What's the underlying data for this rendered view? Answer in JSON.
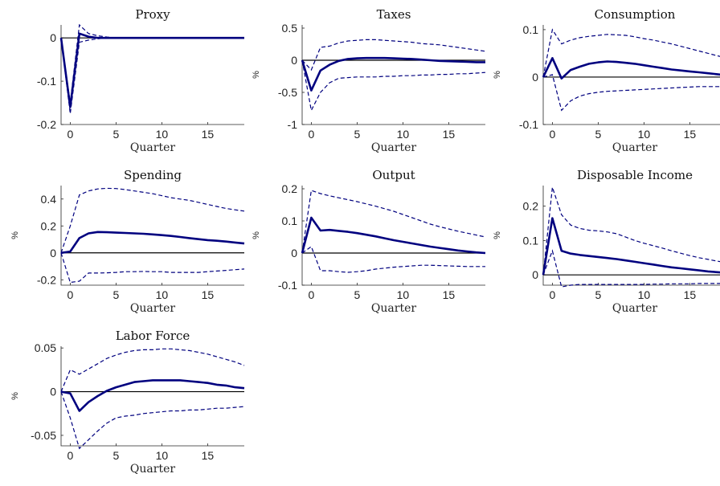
{
  "chart_data": [
    {
      "type": "line",
      "title": "Proxy",
      "xlabel": "Quarter",
      "ylabel": "",
      "xlim": [
        -1,
        19
      ],
      "ylim": [
        -0.2,
        0.03
      ],
      "xticks": [
        0,
        5,
        10,
        15
      ],
      "yticks": [
        -0.2,
        -0.1,
        0
      ],
      "ytick_labels": [
        "-0.2",
        "-0.1",
        "0"
      ],
      "x": [
        -1,
        0,
        1,
        2,
        3,
        4,
        5,
        6,
        7,
        8,
        9,
        10,
        11,
        12,
        13,
        14,
        15,
        16,
        17,
        18,
        19
      ],
      "series": [
        {
          "values": [
            0,
            -0.16,
            0.01,
            0.003,
            0,
            0,
            0,
            0,
            0,
            0,
            0,
            0,
            0,
            0,
            0,
            0,
            0,
            0,
            0,
            0,
            0
          ]
        },
        {
          "values": [
            0,
            -0.15,
            0.03,
            0.01,
            0.005,
            0.002,
            0,
            0,
            0,
            0,
            0,
            0,
            0,
            0,
            0,
            0,
            0,
            0,
            0,
            0,
            0
          ]
        },
        {
          "values": [
            0,
            -0.175,
            -0.01,
            -0.005,
            -0.002,
            0,
            0,
            0,
            0,
            0,
            0,
            0,
            0,
            0,
            0,
            0,
            0,
            0,
            0,
            0,
            0
          ]
        }
      ]
    },
    {
      "type": "line",
      "title": "Taxes",
      "xlabel": "Quarter",
      "ylabel": "%",
      "xlim": [
        -1,
        19
      ],
      "ylim": [
        -1,
        0.55
      ],
      "xticks": [
        0,
        5,
        10,
        15
      ],
      "yticks": [
        -1,
        -0.5,
        0,
        0.5
      ],
      "ytick_labels": [
        "-1",
        "-0.5",
        "0",
        "0.5"
      ],
      "x": [
        -1,
        0,
        1,
        2,
        3,
        4,
        5,
        6,
        7,
        8,
        9,
        10,
        11,
        12,
        13,
        14,
        15,
        16,
        17,
        18,
        19
      ],
      "series": [
        {
          "values": [
            0,
            -0.47,
            -0.16,
            -0.07,
            -0.01,
            0.02,
            0.03,
            0.035,
            0.035,
            0.035,
            0.03,
            0.025,
            0.02,
            0.01,
            0,
            -0.01,
            -0.015,
            -0.02,
            -0.025,
            -0.03,
            -0.03
          ]
        },
        {
          "values": [
            0,
            -0.15,
            0.2,
            0.22,
            0.27,
            0.3,
            0.31,
            0.32,
            0.32,
            0.31,
            0.3,
            0.29,
            0.28,
            0.26,
            0.25,
            0.24,
            0.22,
            0.2,
            0.18,
            0.16,
            0.14
          ]
        },
        {
          "values": [
            0,
            -0.78,
            -0.5,
            -0.35,
            -0.28,
            -0.27,
            -0.26,
            -0.26,
            -0.26,
            -0.25,
            -0.25,
            -0.24,
            -0.24,
            -0.23,
            -0.23,
            -0.22,
            -0.22,
            -0.21,
            -0.21,
            -0.2,
            -0.19
          ]
        }
      ]
    },
    {
      "type": "line",
      "title": "Consumption",
      "xlabel": "Quarter",
      "ylabel": "%",
      "xlim": [
        -1,
        19
      ],
      "ylim": [
        -0.1,
        0.11
      ],
      "xticks": [
        0,
        5,
        10,
        15
      ],
      "yticks": [
        -0.1,
        0,
        0.1
      ],
      "ytick_labels": [
        "-0.1",
        "0",
        "0.1"
      ],
      "x": [
        -1,
        0,
        1,
        2,
        3,
        4,
        5,
        6,
        7,
        8,
        9,
        10,
        11,
        12,
        13,
        14,
        15,
        16,
        17,
        18,
        19
      ],
      "series": [
        {
          "values": [
            0,
            0.04,
            -0.003,
            0.015,
            0.022,
            0.028,
            0.031,
            0.033,
            0.032,
            0.03,
            0.028,
            0.025,
            0.022,
            0.019,
            0.016,
            0.014,
            0.012,
            0.01,
            0.008,
            0.006,
            0.004
          ]
        },
        {
          "values": [
            0,
            0.1,
            0.07,
            0.078,
            0.083,
            0.086,
            0.088,
            0.09,
            0.089,
            0.088,
            0.085,
            0.081,
            0.078,
            0.074,
            0.07,
            0.065,
            0.06,
            0.055,
            0.05,
            0.045,
            0.04
          ]
        },
        {
          "values": [
            0,
            0.005,
            -0.07,
            -0.05,
            -0.04,
            -0.035,
            -0.032,
            -0.03,
            -0.029,
            -0.028,
            -0.027,
            -0.026,
            -0.025,
            -0.024,
            -0.023,
            -0.022,
            -0.021,
            -0.02,
            -0.02,
            -0.02,
            -0.02
          ]
        }
      ]
    },
    {
      "type": "line",
      "title": "Spending",
      "xlabel": "Quarter",
      "ylabel": "%",
      "xlim": [
        -1,
        19
      ],
      "ylim": [
        -0.24,
        0.5
      ],
      "xticks": [
        0,
        5,
        10,
        15
      ],
      "yticks": [
        -0.2,
        0,
        0.2,
        0.4
      ],
      "ytick_labels": [
        "-0.2",
        "0",
        "0.2",
        "0.4"
      ],
      "x": [
        -1,
        0,
        1,
        2,
        3,
        4,
        5,
        6,
        7,
        8,
        9,
        10,
        11,
        12,
        13,
        14,
        15,
        16,
        17,
        18,
        19
      ],
      "series": [
        {
          "values": [
            0,
            0.01,
            0.11,
            0.145,
            0.155,
            0.153,
            0.15,
            0.148,
            0.145,
            0.142,
            0.137,
            0.132,
            0.126,
            0.118,
            0.11,
            0.102,
            0.095,
            0.09,
            0.084,
            0.077,
            0.07
          ]
        },
        {
          "values": [
            0,
            0.2,
            0.43,
            0.46,
            0.475,
            0.48,
            0.478,
            0.47,
            0.46,
            0.45,
            0.44,
            0.425,
            0.41,
            0.4,
            0.39,
            0.375,
            0.36,
            0.345,
            0.33,
            0.32,
            0.31
          ]
        },
        {
          "values": [
            0,
            -0.22,
            -0.21,
            -0.15,
            -0.15,
            -0.148,
            -0.145,
            -0.14,
            -0.14,
            -0.138,
            -0.14,
            -0.14,
            -0.145,
            -0.145,
            -0.145,
            -0.145,
            -0.14,
            -0.135,
            -0.13,
            -0.125,
            -0.12
          ]
        }
      ]
    },
    {
      "type": "line",
      "title": "Output",
      "xlabel": "Quarter",
      "ylabel": "%",
      "xlim": [
        -1,
        19
      ],
      "ylim": [
        -0.1,
        0.21
      ],
      "xticks": [
        0,
        5,
        10,
        15
      ],
      "yticks": [
        -0.1,
        0,
        0.1,
        0.2
      ],
      "ytick_labels": [
        "-0.1",
        "0",
        "0.1",
        "0.2"
      ],
      "x": [
        -1,
        0,
        1,
        2,
        3,
        4,
        5,
        6,
        7,
        8,
        9,
        10,
        11,
        12,
        13,
        14,
        15,
        16,
        17,
        18,
        19
      ],
      "series": [
        {
          "values": [
            0,
            0.11,
            0.07,
            0.072,
            0.069,
            0.066,
            0.062,
            0.057,
            0.052,
            0.046,
            0.04,
            0.035,
            0.03,
            0.025,
            0.02,
            0.016,
            0.012,
            0.008,
            0.005,
            0.002,
            0
          ]
        },
        {
          "values": [
            0,
            0.195,
            0.185,
            0.178,
            0.172,
            0.166,
            0.16,
            0.153,
            0.146,
            0.138,
            0.13,
            0.12,
            0.11,
            0.1,
            0.09,
            0.082,
            0.075,
            0.068,
            0.062,
            0.056,
            0.05
          ]
        },
        {
          "values": [
            0,
            0.02,
            -0.055,
            -0.055,
            -0.058,
            -0.06,
            -0.058,
            -0.055,
            -0.05,
            -0.047,
            -0.044,
            -0.042,
            -0.04,
            -0.038,
            -0.038,
            -0.039,
            -0.04,
            -0.041,
            -0.042,
            -0.042,
            -0.042
          ]
        }
      ]
    },
    {
      "type": "line",
      "title": "Disposable Income",
      "xlabel": "Quarter",
      "ylabel": "%",
      "xlim": [
        -1,
        19
      ],
      "ylim": [
        -0.03,
        0.26
      ],
      "xticks": [
        0,
        5,
        10,
        15
      ],
      "yticks": [
        0,
        0.1,
        0.2
      ],
      "ytick_labels": [
        "0",
        "0.1",
        "0.2"
      ],
      "x": [
        -1,
        0,
        1,
        2,
        3,
        4,
        5,
        6,
        7,
        8,
        9,
        10,
        11,
        12,
        13,
        14,
        15,
        16,
        17,
        18,
        19
      ],
      "series": [
        {
          "values": [
            0,
            0.165,
            0.07,
            0.062,
            0.058,
            0.055,
            0.052,
            0.049,
            0.046,
            0.042,
            0.038,
            0.034,
            0.03,
            0.026,
            0.022,
            0.019,
            0.016,
            0.013,
            0.01,
            0.008,
            0.006
          ]
        },
        {
          "values": [
            0,
            0.255,
            0.175,
            0.145,
            0.135,
            0.13,
            0.128,
            0.125,
            0.12,
            0.11,
            0.1,
            0.092,
            0.085,
            0.078,
            0.07,
            0.063,
            0.056,
            0.05,
            0.045,
            0.04,
            0.036
          ]
        },
        {
          "values": [
            0,
            0.07,
            -0.035,
            -0.03,
            -0.028,
            -0.028,
            -0.028,
            -0.028,
            -0.028,
            -0.028,
            -0.028,
            -0.028,
            -0.027,
            -0.027,
            -0.026,
            -0.026,
            -0.026,
            -0.025,
            -0.025,
            -0.025,
            -0.025
          ]
        }
      ]
    },
    {
      "type": "line",
      "title": "Labor Force",
      "xlabel": "Quarter",
      "ylabel": "%",
      "xlim": [
        -1,
        19
      ],
      "ylim": [
        -0.062,
        0.052
      ],
      "xticks": [
        0,
        5,
        10,
        15
      ],
      "yticks": [
        -0.05,
        0,
        0.05
      ],
      "ytick_labels": [
        "-0.05",
        "0",
        "0.05"
      ],
      "x": [
        -1,
        0,
        1,
        2,
        3,
        4,
        5,
        6,
        7,
        8,
        9,
        10,
        11,
        12,
        13,
        14,
        15,
        16,
        17,
        18,
        19
      ],
      "series": [
        {
          "values": [
            0,
            -0.002,
            -0.022,
            -0.012,
            -0.005,
            0.001,
            0.005,
            0.008,
            0.011,
            0.012,
            0.013,
            0.013,
            0.013,
            0.013,
            0.012,
            0.011,
            0.01,
            0.008,
            0.007,
            0.005,
            0.004
          ]
        },
        {
          "values": [
            0,
            0.025,
            0.02,
            0.026,
            0.032,
            0.038,
            0.042,
            0.045,
            0.047,
            0.048,
            0.048,
            0.049,
            0.049,
            0.048,
            0.047,
            0.045,
            0.043,
            0.04,
            0.037,
            0.034,
            0.03
          ]
        },
        {
          "values": [
            0,
            -0.03,
            -0.065,
            -0.055,
            -0.045,
            -0.036,
            -0.03,
            -0.028,
            -0.027,
            -0.025,
            -0.024,
            -0.023,
            -0.022,
            -0.022,
            -0.021,
            -0.021,
            -0.02,
            -0.019,
            -0.019,
            -0.018,
            -0.017
          ]
        }
      ]
    }
  ]
}
